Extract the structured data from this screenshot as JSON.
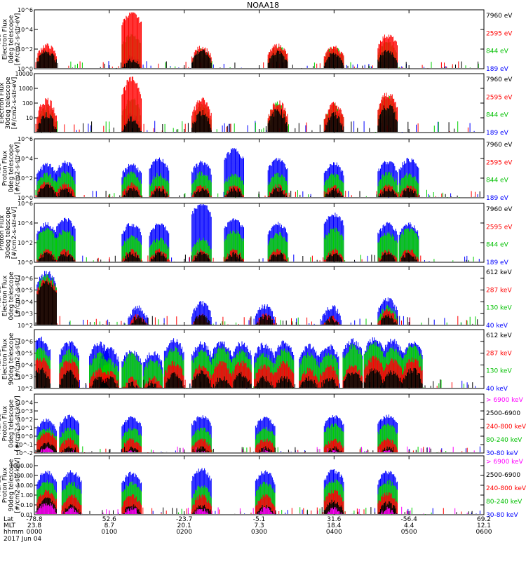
{
  "title": "NOAA18",
  "colors": {
    "black": "#000000",
    "red": "#ff0000",
    "green": "#00e000",
    "blue": "#0000ff",
    "magenta": "#ff00ff"
  },
  "chart_data": [
    {
      "type": "line",
      "instrument": "TED",
      "ylabel": [
        "TED",
        "Electron Flux",
        "0deg telescope",
        "[#/cm2-s-str-eV]"
      ],
      "yscale": "log",
      "ylim": [
        1,
        1000000
      ],
      "yticks": [
        {
          "v": 1,
          "t": "10^0"
        },
        {
          "v": 100,
          "t": "10^2"
        },
        {
          "v": 10000,
          "t": "10^4"
        },
        {
          "v": 1000000,
          "t": "10^6"
        }
      ],
      "series": [
        {
          "name": "7960 eV",
          "color": "#000000"
        },
        {
          "name": "2595 eV",
          "color": "#ff0000"
        },
        {
          "name": "844 eV",
          "color": "#00e000"
        },
        {
          "name": "189 eV",
          "color": "#0000ff"
        }
      ],
      "events": [
        {
          "t": 10,
          "h": [
            70,
            300,
            120,
            40
          ]
        },
        {
          "t": 78,
          "h": [
            10,
            500000,
            3000,
            20
          ]
        },
        {
          "t": 134,
          "h": [
            80,
            200,
            100,
            20
          ]
        },
        {
          "t": 195,
          "h": [
            60,
            300,
            200,
            20
          ]
        },
        {
          "t": 240,
          "h": [
            40,
            200,
            150,
            30
          ]
        },
        {
          "t": 283,
          "h": [
            80,
            3000,
            500,
            30
          ]
        }
      ]
    },
    {
      "type": "line",
      "instrument": "TED",
      "ylabel": [
        "Electron Flux",
        "30deg telescope",
        "[#/cm2-s-str-eV]"
      ],
      "yscale": "log",
      "ylim": [
        1,
        10000
      ],
      "yticks": [
        {
          "v": 10,
          "t": "10"
        },
        {
          "v": 100,
          "t": "100"
        },
        {
          "v": 1000,
          "t": "1000"
        },
        {
          "v": 10000,
          "t": "10000"
        }
      ],
      "series": [
        {
          "name": "7960 eV",
          "color": "#000000"
        },
        {
          "name": "2595 eV",
          "color": "#ff0000"
        },
        {
          "name": "844 eV",
          "color": "#00e000"
        },
        {
          "name": "189 eV",
          "color": "#0000ff"
        }
      ],
      "events": [
        {
          "t": 10,
          "h": [
            20,
            200,
            60,
            20
          ]
        },
        {
          "t": 78,
          "h": [
            10,
            5000,
            200,
            20
          ]
        },
        {
          "t": 134,
          "h": [
            30,
            200,
            80,
            20
          ]
        },
        {
          "t": 195,
          "h": [
            40,
            150,
            100,
            20
          ]
        },
        {
          "t": 240,
          "h": [
            20,
            100,
            80,
            20
          ]
        },
        {
          "t": 283,
          "h": [
            80,
            500,
            300,
            20
          ]
        }
      ]
    },
    {
      "type": "line",
      "instrument": "TED",
      "ylabel": [
        "TED",
        "Proton Flux",
        "0deg telescope",
        "[#/cm2-s-str-eV]"
      ],
      "yscale": "log",
      "ylim": [
        1,
        1000000
      ],
      "yticks": [
        {
          "v": 1,
          "t": "10^0"
        },
        {
          "v": 100,
          "t": "10^2"
        },
        {
          "v": 10000,
          "t": "10^4"
        },
        {
          "v": 1000000,
          "t": "10^6"
        }
      ],
      "series": [
        {
          "name": "7960 eV",
          "color": "#000000"
        },
        {
          "name": "2595 eV",
          "color": "#ff0000"
        },
        {
          "name": "844 eV",
          "color": "#00e000"
        },
        {
          "name": "189 eV",
          "color": "#0000ff"
        }
      ],
      "events": [
        {
          "t": 10,
          "h": [
            20,
            40,
            300,
            3000
          ]
        },
        {
          "t": 25,
          "h": [
            10,
            30,
            500,
            5000
          ]
        },
        {
          "t": 78,
          "h": [
            10,
            30,
            400,
            3000
          ]
        },
        {
          "t": 100,
          "h": [
            10,
            20,
            300,
            10000
          ]
        },
        {
          "t": 134,
          "h": [
            10,
            20,
            400,
            5000
          ]
        },
        {
          "t": 160,
          "h": [
            10,
            20,
            300,
            100000
          ]
        },
        {
          "t": 195,
          "h": [
            10,
            20,
            300,
            10000
          ]
        },
        {
          "t": 240,
          "h": [
            10,
            20,
            300,
            4000
          ]
        },
        {
          "t": 283,
          "h": [
            10,
            20,
            400,
            6000
          ]
        },
        {
          "t": 300,
          "h": [
            10,
            20,
            300,
            10000
          ]
        }
      ]
    },
    {
      "type": "line",
      "instrument": "TED",
      "ylabel": [
        "Proton Flux",
        "30deg telescope",
        "[#/cm2-s-str-eV]"
      ],
      "yscale": "log",
      "ylim": [
        1,
        1000000
      ],
      "yticks": [
        {
          "v": 1,
          "t": "10^0"
        },
        {
          "v": 100,
          "t": "10^2"
        },
        {
          "v": 10000,
          "t": "10^4"
        },
        {
          "v": 1000000,
          "t": "10^6"
        }
      ],
      "series": [
        {
          "name": "7960 eV",
          "color": "#000000"
        },
        {
          "name": "2595 eV",
          "color": "#ff0000"
        },
        {
          "name": "844 eV",
          "color": "#00e000"
        },
        {
          "name": "189 eV",
          "color": "#0000ff"
        }
      ],
      "events": [
        {
          "t": 10,
          "h": [
            10,
            20,
            3000,
            10000
          ]
        },
        {
          "t": 25,
          "h": [
            10,
            20,
            2000,
            30000
          ]
        },
        {
          "t": 78,
          "h": [
            10,
            20,
            500,
            10000
          ]
        },
        {
          "t": 100,
          "h": [
            10,
            20,
            300,
            10000
          ]
        },
        {
          "t": 134,
          "h": [
            10,
            20,
            300,
            1000000
          ]
        },
        {
          "t": 160,
          "h": [
            10,
            20,
            2000,
            30000
          ]
        },
        {
          "t": 195,
          "h": [
            10,
            20,
            1000,
            10000
          ]
        },
        {
          "t": 240,
          "h": [
            10,
            20,
            3000,
            100000
          ]
        },
        {
          "t": 283,
          "h": [
            10,
            20,
            1000,
            10000
          ]
        },
        {
          "t": 300,
          "h": [
            10,
            20,
            3000,
            10000
          ]
        }
      ]
    },
    {
      "type": "line",
      "instrument": "MEPED",
      "ylabel": [
        "MEPED",
        "Electron Flux",
        "0deg telescope",
        "[#/cm2-s-str]"
      ],
      "yscale": "log",
      "ylim": [
        100,
        10000000
      ],
      "yticks": [
        {
          "v": 100,
          "t": "10^2"
        },
        {
          "v": 1000,
          "t": "10^3"
        },
        {
          "v": 10000,
          "t": "10^4"
        },
        {
          "v": 100000,
          "t": "10^5"
        },
        {
          "v": 1000000,
          "t": "10^6"
        }
      ],
      "series": [
        {
          "name": "612 keV",
          "color": "#000000"
        },
        {
          "name": "287 keV",
          "color": "#ff0000"
        },
        {
          "name": "130 keV",
          "color": "#00e000"
        },
        {
          "name": "40 keV",
          "color": "#0000ff"
        }
      ],
      "events": [
        {
          "t": 10,
          "h": [
            500000,
            1000000,
            2000000,
            4000000
          ]
        },
        {
          "t": 83,
          "h": [
            600,
            800,
            300,
            4000
          ]
        },
        {
          "t": 134,
          "h": [
            1000,
            800,
            300,
            10000
          ]
        },
        {
          "t": 185,
          "h": [
            800,
            1000,
            300,
            6000
          ]
        },
        {
          "t": 238,
          "h": [
            500,
            600,
            300,
            5000
          ]
        },
        {
          "t": 283,
          "h": [
            800,
            2000,
            5000,
            20000
          ]
        }
      ]
    },
    {
      "type": "line",
      "instrument": "MEPED",
      "ylabel": [
        "MEPED",
        "Electron Flux",
        "90deg telescope",
        "[#/cm2-s-str]"
      ],
      "yscale": "log",
      "ylim": [
        100,
        10000000
      ],
      "yticks": [
        {
          "v": 100,
          "t": "10^2"
        },
        {
          "v": 1000,
          "t": "10^3"
        },
        {
          "v": 10000,
          "t": "10^4"
        },
        {
          "v": 100000,
          "t": "10^5"
        },
        {
          "v": 1000000,
          "t": "10^6"
        }
      ],
      "series": [
        {
          "name": "612 keV",
          "color": "#000000"
        },
        {
          "name": "287 keV",
          "color": "#ff0000"
        },
        {
          "name": "130 keV",
          "color": "#00e000"
        },
        {
          "name": "40 keV",
          "color": "#0000ff"
        }
      ],
      "events": [
        {
          "t": 5,
          "h": [
            5000,
            40000,
            300000,
            2000000
          ]
        },
        {
          "t": 28,
          "h": [
            3000,
            30000,
            200000,
            1000000
          ]
        },
        {
          "t": 52,
          "h": [
            1000,
            5000,
            100000,
            800000
          ]
        },
        {
          "t": 60,
          "h": [
            1000,
            3000,
            30000,
            300000
          ]
        },
        {
          "t": 78,
          "h": [
            300,
            800,
            100000,
            200000
          ]
        },
        {
          "t": 95,
          "h": [
            300,
            1000,
            30000,
            150000
          ]
        },
        {
          "t": 112,
          "h": [
            2000,
            20000,
            300000,
            1500000
          ]
        },
        {
          "t": 134,
          "h": [
            3000,
            10000,
            200000,
            800000
          ]
        },
        {
          "t": 150,
          "h": [
            1000,
            20000,
            300000,
            1000000
          ]
        },
        {
          "t": 166,
          "h": [
            2000,
            20000,
            200000,
            900000
          ]
        },
        {
          "t": 184,
          "h": [
            1000,
            10000,
            100000,
            700000
          ]
        },
        {
          "t": 200,
          "h": [
            1000,
            20000,
            200000,
            1000000
          ]
        },
        {
          "t": 220,
          "h": [
            1000,
            5000,
            100000,
            500000
          ]
        },
        {
          "t": 236,
          "h": [
            1000,
            10000,
            100000,
            500000
          ]
        },
        {
          "t": 255,
          "h": [
            3000,
            10000,
            500000,
            1500000
          ]
        },
        {
          "t": 272,
          "h": [
            5000,
            50000,
            800000,
            1800000
          ]
        },
        {
          "t": 287,
          "h": [
            3000,
            30000,
            300000,
            1500000
          ]
        },
        {
          "t": 303,
          "h": [
            5000,
            40000,
            500000,
            1000000
          ]
        }
      ]
    },
    {
      "type": "line",
      "instrument": "MEPED",
      "ylabel": [
        "MEPED",
        "Proton Flux",
        "0deg telescope",
        "[#/cm2-s-str-keV]"
      ],
      "yscale": "log",
      "ylim": [
        0.01,
        100000
      ],
      "yticks": [
        {
          "v": 0.01,
          "t": "10^-2"
        },
        {
          "v": 0.1,
          "t": "10^-1"
        },
        {
          "v": 1,
          "t": "10^0"
        },
        {
          "v": 10,
          "t": "10^1"
        },
        {
          "v": 100,
          "t": "10^2"
        },
        {
          "v": 1000,
          "t": "10^3"
        },
        {
          "v": 10000,
          "t": "10^4"
        }
      ],
      "series": [
        {
          "name": "> 6900 keV",
          "color": "#ff00ff"
        },
        {
          "name": "2500-6900",
          "color": "#000000"
        },
        {
          "name": "240-800 keV",
          "color": "#ff0000"
        },
        {
          "name": "80-240 keV",
          "color": "#00e000"
        },
        {
          "name": "30-80 keV",
          "color": "#0000ff"
        }
      ],
      "events": [
        {
          "t": 10,
          "h": [
            0.05,
            0.2,
            3,
            10,
            100
          ]
        },
        {
          "t": 28,
          "h": [
            0.02,
            0.05,
            0.5,
            10,
            300
          ]
        },
        {
          "t": 78,
          "h": [
            0.02,
            0.05,
            0.5,
            10,
            200
          ]
        },
        {
          "t": 134,
          "h": [
            0.02,
            0.05,
            0.5,
            10,
            300
          ]
        },
        {
          "t": 185,
          "h": [
            0.02,
            0.05,
            0.5,
            10,
            200
          ]
        },
        {
          "t": 240,
          "h": [
            0.02,
            0.05,
            0.5,
            30,
            300
          ]
        },
        {
          "t": 283,
          "h": [
            0.02,
            0.05,
            0.5,
            30,
            300
          ]
        }
      ]
    },
    {
      "type": "line",
      "instrument": "MEPED",
      "ylabel": [
        "MEPED",
        "Proton Flux",
        "90deg telescope",
        "[#/cm2-s-str-keV]"
      ],
      "yscale": "log",
      "ylim": [
        0.01,
        10000
      ],
      "yticks": [
        {
          "v": 0.01,
          "t": "0.01"
        },
        {
          "v": 0.1,
          "t": "0.10"
        },
        {
          "v": 1,
          "t": "1.00"
        },
        {
          "v": 10,
          "t": "10.00"
        },
        {
          "v": 100,
          "t": "100.00"
        },
        {
          "v": 1000,
          "t": "1000.00"
        }
      ],
      "series": [
        {
          "name": "> 6900 keV",
          "color": "#ff00ff"
        },
        {
          "name": "2500-6900",
          "color": "#000000"
        },
        {
          "name": "240-800 keV",
          "color": "#ff0000"
        },
        {
          "name": "80-240 keV",
          "color": "#00e000"
        },
        {
          "name": "30-80 keV",
          "color": "#0000ff"
        }
      ],
      "events": [
        {
          "t": 10,
          "h": [
            0.2,
            0.5,
            3,
            30,
            300
          ]
        },
        {
          "t": 30,
          "h": [
            0.05,
            0.1,
            1,
            20,
            300
          ]
        },
        {
          "t": 78,
          "h": [
            0.05,
            0.1,
            1,
            20,
            200
          ]
        },
        {
          "t": 134,
          "h": [
            0.05,
            0.1,
            1,
            10,
            500
          ]
        },
        {
          "t": 185,
          "h": [
            0.05,
            0.1,
            1,
            20,
            300
          ]
        },
        {
          "t": 240,
          "h": [
            0.05,
            0.3,
            3,
            40,
            400
          ]
        },
        {
          "t": 283,
          "h": [
            0.05,
            0.2,
            2,
            30,
            300
          ]
        }
      ]
    }
  ],
  "xaxis": {
    "row_labels": [
      "Lat",
      "MLT",
      "hhmm"
    ],
    "ticks": [
      {
        "t": 0,
        "lat": "-78.8",
        "mlt": "23.8",
        "hhmm": "0000"
      },
      {
        "t": 60,
        "lat": "52.6",
        "mlt": "8.7",
        "hhmm": "0100"
      },
      {
        "t": 120,
        "lat": "-23.7",
        "mlt": "20.1",
        "hhmm": "0200"
      },
      {
        "t": 180,
        "lat": "-5.1",
        "mlt": "7.3",
        "hhmm": "0300"
      },
      {
        "t": 240,
        "lat": "31.6",
        "mlt": "18.4",
        "hhmm": "0400"
      },
      {
        "t": 300,
        "lat": "-56.4",
        "mlt": "4.4",
        "hhmm": "0500"
      },
      {
        "t": 360,
        "lat": "69.2",
        "mlt": "12.1",
        "hhmm": "0600"
      }
    ],
    "date": "2017 Jun 04"
  }
}
